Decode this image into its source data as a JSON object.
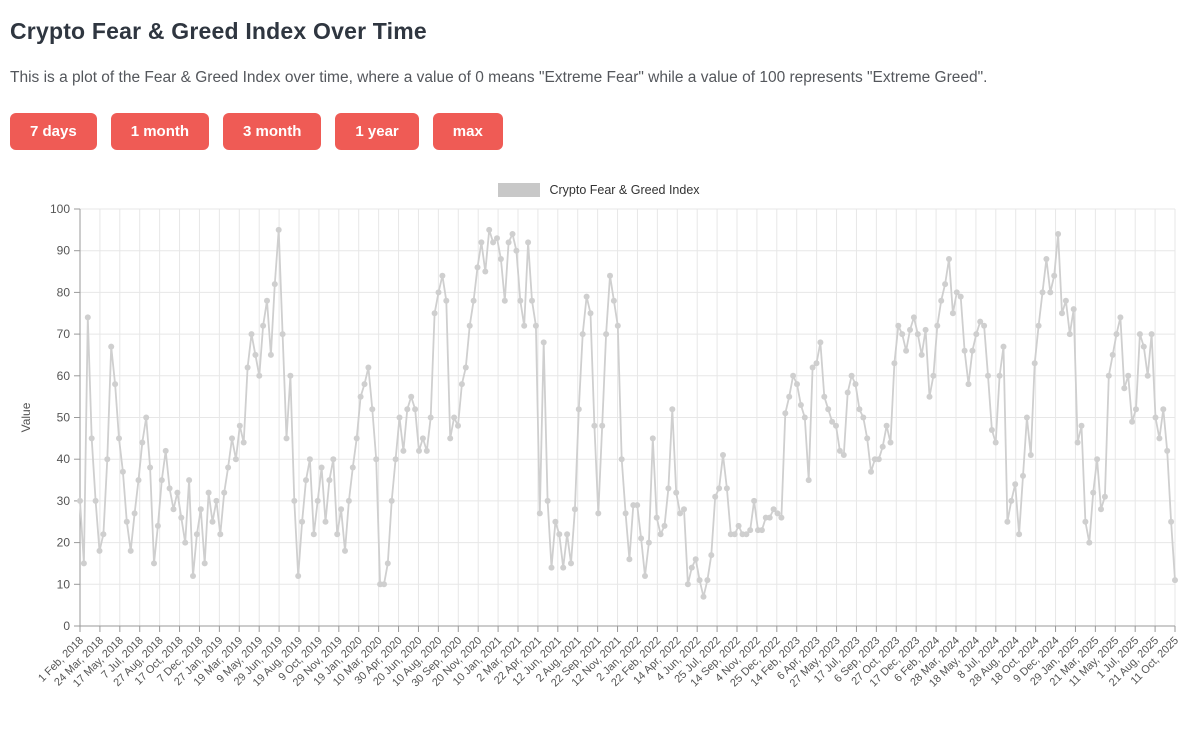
{
  "page": {
    "title": "Crypto Fear & Greed Index Over Time",
    "description": "This is a plot of the Fear & Greed Index over time, where a value of 0 means \"Extreme Fear\" while a value of 100 represents \"Extreme Greed\"."
  },
  "range_buttons": [
    "7 days",
    "1 month",
    "3 month",
    "1 year",
    "max"
  ],
  "colors": {
    "accent": "#ef5b55",
    "series": "#cfcfcf",
    "grid": "#e7e7e7",
    "axis": "#9a9a9a",
    "tick_text": "#555555",
    "title_text": "#2f3640",
    "legend_box": "#c8c8c8"
  },
  "chart_data": {
    "type": "scatter",
    "legend_label": "Crypto Fear & Greed Index",
    "legend_position": "top-center",
    "grid": true,
    "ylabel": "Value",
    "ylim": [
      0,
      100
    ],
    "y_ticks": [
      0,
      10,
      20,
      30,
      40,
      50,
      60,
      70,
      80,
      90,
      100
    ],
    "x_range": [
      "2018-02-01",
      "2025-10-11"
    ],
    "x_ticks": [
      "1 Feb, 2018",
      "24 Mar, 2018",
      "17 May, 2018",
      "7 Jul, 2018",
      "27 Aug, 2018",
      "17 Oct, 2018",
      "7 Dec, 2018",
      "27 Jan, 2019",
      "19 Mar, 2019",
      "9 May, 2019",
      "29 Jun, 2019",
      "19 Aug, 2019",
      "9 Oct, 2019",
      "29 Nov, 2019",
      "19 Jan, 2020",
      "10 Mar, 2020",
      "30 Apr, 2020",
      "20 Jun, 2020",
      "10 Aug, 2020",
      "30 Sep, 2020",
      "20 Nov, 2020",
      "10 Jan, 2021",
      "2 Mar, 2021",
      "22 Apr, 2021",
      "12 Jun, 2021",
      "2 Aug, 2021",
      "22 Sep, 2021",
      "12 Nov, 2021",
      "2 Jan, 2022",
      "22 Feb, 2022",
      "14 Apr, 2022",
      "4 Jun, 2022",
      "25 Jul, 2022",
      "14 Sep, 2022",
      "4 Nov, 2022",
      "25 Dec, 2022",
      "14 Feb, 2023",
      "6 Apr, 2023",
      "27 May, 2023",
      "17 Jul, 2023",
      "6 Sep, 2023",
      "27 Oct, 2023",
      "17 Dec, 2023",
      "6 Feb, 2024",
      "28 Mar, 2024",
      "18 May, 2024",
      "8 Jul, 2024",
      "28 Aug, 2024",
      "18 Oct, 2024",
      "9 Dec, 2024",
      "29 Jan, 2025",
      "21 Mar, 2025",
      "11 May, 2025",
      "1 Jul, 2025",
      "21 Aug, 2025",
      "11 Oct, 2025"
    ],
    "values_sampling": "approx. every 10 days, values estimated from plot",
    "values": [
      30,
      15,
      74,
      45,
      30,
      18,
      22,
      40,
      67,
      58,
      45,
      37,
      25,
      18,
      27,
      35,
      44,
      50,
      38,
      15,
      24,
      35,
      42,
      33,
      28,
      32,
      26,
      20,
      35,
      12,
      22,
      28,
      15,
      32,
      25,
      30,
      22,
      32,
      38,
      45,
      40,
      48,
      44,
      62,
      70,
      65,
      60,
      72,
      78,
      65,
      82,
      95,
      70,
      45,
      60,
      30,
      12,
      25,
      35,
      40,
      22,
      30,
      38,
      25,
      35,
      40,
      22,
      28,
      18,
      30,
      38,
      45,
      55,
      58,
      62,
      52,
      40,
      10,
      10,
      15,
      30,
      40,
      50,
      42,
      52,
      55,
      52,
      42,
      45,
      42,
      50,
      75,
      80,
      84,
      78,
      45,
      50,
      48,
      58,
      62,
      72,
      78,
      86,
      92,
      85,
      95,
      92,
      93,
      88,
      78,
      92,
      94,
      90,
      78,
      72,
      92,
      78,
      72,
      27,
      68,
      30,
      14,
      25,
      22,
      14,
      22,
      15,
      28,
      52,
      70,
      79,
      75,
      48,
      27,
      48,
      70,
      84,
      78,
      72,
      40,
      27,
      16,
      29,
      29,
      21,
      12,
      20,
      45,
      26,
      22,
      24,
      33,
      52,
      32,
      27,
      28,
      10,
      14,
      16,
      11,
      7,
      11,
      17,
      31,
      33,
      41,
      33,
      22,
      22,
      24,
      22,
      22,
      23,
      30,
      23,
      23,
      26,
      26,
      28,
      27,
      26,
      51,
      55,
      60,
      58,
      53,
      50,
      35,
      62,
      63,
      68,
      55,
      52,
      49,
      48,
      42,
      41,
      56,
      60,
      58,
      52,
      50,
      45,
      37,
      40,
      40,
      43,
      48,
      44,
      63,
      72,
      70,
      66,
      71,
      74,
      70,
      65,
      71,
      55,
      60,
      72,
      78,
      82,
      88,
      75,
      80,
      79,
      66,
      58,
      66,
      70,
      73,
      72,
      60,
      47,
      44,
      60,
      67,
      25,
      30,
      34,
      22,
      36,
      50,
      41,
      63,
      72,
      80,
      88,
      80,
      84,
      94,
      75,
      78,
      70,
      76,
      44,
      48,
      25,
      20,
      32,
      40,
      28,
      31,
      60,
      65,
      70,
      74,
      57,
      60,
      49,
      52,
      70,
      67,
      60,
      70,
      50,
      45,
      52,
      42,
      25,
      11
    ]
  }
}
